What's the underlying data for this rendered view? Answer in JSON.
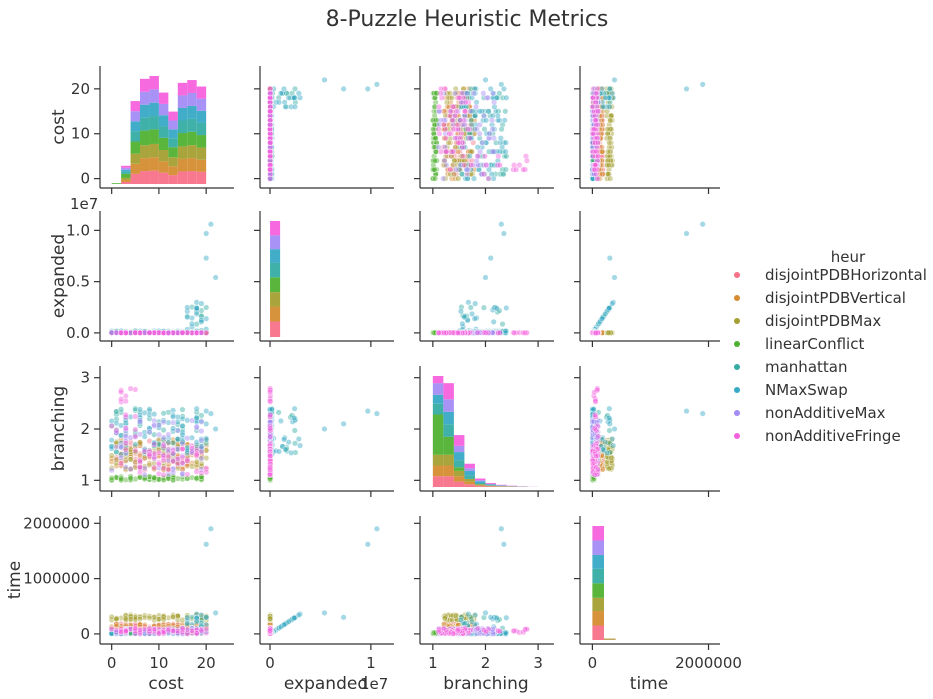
{
  "chart_data": {
    "type": "scatter",
    "title": "8-Puzzle Heuristic Metrics",
    "variables": [
      "cost",
      "expanded",
      "branching",
      "time"
    ],
    "axis_labels": {
      "cost": "cost",
      "expanded": "expanded",
      "branching": "branching",
      "time": "time"
    },
    "ranges": {
      "cost": [
        -1.2,
        24.2
      ],
      "expanded": [
        -400000,
        11500000
      ],
      "branching": [
        0.87,
        3.15
      ],
      "time": [
        -110000,
        2060000
      ]
    },
    "ticks": {
      "cost": [
        {
          "v": 0,
          "label": "0"
        },
        {
          "v": 10,
          "label": "10"
        },
        {
          "v": 20,
          "label": "20"
        }
      ],
      "expanded": [
        {
          "v": 0,
          "label": "0.0"
        },
        {
          "v": 5000000,
          "label": "0.5"
        },
        {
          "v": 10000000,
          "label": "1.0"
        }
      ],
      "expanded_x": [
        {
          "v": 0,
          "label": "0"
        },
        {
          "v": 10000000,
          "label": "1"
        }
      ],
      "branching": [
        {
          "v": 1,
          "label": "1"
        },
        {
          "v": 2,
          "label": "2"
        },
        {
          "v": 3,
          "label": "3"
        }
      ],
      "time": [
        {
          "v": 0,
          "label": "0"
        },
        {
          "v": 1000000,
          "label": "1000000"
        },
        {
          "v": 2000000,
          "label": "2000000"
        }
      ],
      "time_x": [
        {
          "v": 0,
          "label": "0"
        },
        {
          "v": 2000000,
          "label": "2000000"
        }
      ]
    },
    "offset_label": "1e7",
    "legend": {
      "title": "heur",
      "position": "right",
      "entries": [
        {
          "name": "disjointPDBHorizontal",
          "color": "#f77189"
        },
        {
          "name": "disjointPDBVertical",
          "color": "#d58c32"
        },
        {
          "name": "disjointPDBMax",
          "color": "#a4a031"
        },
        {
          "name": "linearConflict",
          "color": "#50b131"
        },
        {
          "name": "manhattan",
          "color": "#36ada4"
        },
        {
          "name": "NMaxSwap",
          "color": "#38a9c5"
        },
        {
          "name": "nonAdditiveMax",
          "color": "#a48cf4"
        },
        {
          "name": "nonAdditiveFringe",
          "color": "#f561dd"
        }
      ]
    },
    "diag_cost": {
      "bin_edges": [
        0,
        2,
        4,
        6,
        8,
        10,
        12,
        14,
        16,
        18,
        20
      ],
      "stacks": [
        [
          0.0,
          0.05,
          0.25,
          0.32,
          0.33,
          0.28,
          0.22,
          0.31,
          0.32,
          0.3
        ],
        [
          0.0,
          0.05,
          0.25,
          0.32,
          0.33,
          0.28,
          0.22,
          0.31,
          0.32,
          0.3
        ],
        [
          0.0,
          0.05,
          0.25,
          0.32,
          0.33,
          0.28,
          0.22,
          0.31,
          0.32,
          0.3
        ],
        [
          0.02,
          0.1,
          0.3,
          0.36,
          0.36,
          0.3,
          0.25,
          0.33,
          0.33,
          0.31
        ],
        [
          0.0,
          0.05,
          0.25,
          0.32,
          0.33,
          0.28,
          0.22,
          0.31,
          0.32,
          0.3
        ],
        [
          0.0,
          0.05,
          0.25,
          0.32,
          0.33,
          0.28,
          0.22,
          0.31,
          0.32,
          0.3
        ],
        [
          0.0,
          0.05,
          0.25,
          0.32,
          0.33,
          0.28,
          0.22,
          0.31,
          0.32,
          0.3
        ],
        [
          0.0,
          0.05,
          0.25,
          0.32,
          0.33,
          0.28,
          0.22,
          0.31,
          0.32,
          0.3
        ]
      ]
    },
    "diag_expanded": {
      "bin_edges": [
        0,
        1000000
      ],
      "stacks": [
        [
          1.35
        ],
        [
          1.3
        ],
        [
          1.25
        ],
        [
          1.3
        ],
        [
          1.25
        ],
        [
          1.2
        ],
        [
          1.2
        ],
        [
          1.25
        ]
      ]
    },
    "diag_branching": {
      "bin_edges": [
        1.0,
        1.2,
        1.4,
        1.6,
        1.8,
        2.0,
        2.2,
        2.4,
        2.6,
        2.8,
        3.0
      ],
      "stacks": [
        [
          0.12,
          0.12,
          0.06,
          0.03,
          0.01,
          0.005,
          0.003,
          0.002,
          0.001,
          0.0
        ],
        [
          0.12,
          0.12,
          0.06,
          0.03,
          0.01,
          0.005,
          0.003,
          0.002,
          0.001,
          0.0
        ],
        [
          0.12,
          0.12,
          0.06,
          0.03,
          0.01,
          0.005,
          0.003,
          0.002,
          0.001,
          0.0
        ],
        [
          0.45,
          0.2,
          0.04,
          0.0,
          0.0,
          0.0,
          0.0,
          0.0,
          0.0,
          0.0
        ],
        [
          0.12,
          0.14,
          0.08,
          0.04,
          0.015,
          0.006,
          0.003,
          0.002,
          0.001,
          0.0
        ],
        [
          0.1,
          0.14,
          0.09,
          0.05,
          0.02,
          0.008,
          0.004,
          0.002,
          0.001,
          0.0
        ],
        [
          0.13,
          0.14,
          0.07,
          0.03,
          0.01,
          0.006,
          0.004,
          0.002,
          0.001,
          0.001
        ],
        [
          0.08,
          0.18,
          0.12,
          0.05,
          0.02,
          0.01,
          0.005,
          0.003,
          0.002,
          0.001
        ]
      ]
    },
    "diag_time": {
      "bin_edges": [
        0,
        200000,
        400000
      ],
      "stacks": [
        [
          1.2,
          0.02
        ],
        [
          1.2,
          0.02
        ],
        [
          1.1,
          0.08
        ],
        [
          1.2,
          0.0
        ],
        [
          1.2,
          0.0
        ],
        [
          1.15,
          0.0
        ],
        [
          1.2,
          0.0
        ],
        [
          1.2,
          0.0
        ]
      ]
    }
  }
}
